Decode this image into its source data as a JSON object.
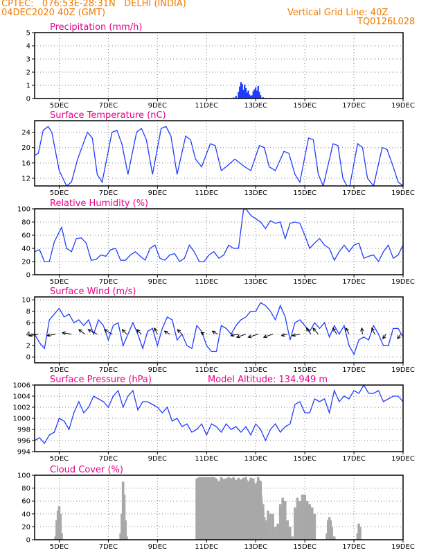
{
  "header": {
    "line1": "CPTEC:   076:53E-28:31N   DELHI (INDIA)",
    "line2": "04DEC2020 40Z (GMT)",
    "right1": "Vertical Grid Line: 40Z",
    "right2": "TQ0126L028"
  },
  "colors": {
    "header": "#f07b00",
    "title": "#e8008a",
    "series": "#1f3bff",
    "cloud": "#a8a8a8",
    "grid": "#808080"
  },
  "chart_data": [
    {
      "id": "precipitation",
      "type": "bar",
      "title": "Precipitation (mm/h)",
      "ylim": [
        0,
        5
      ],
      "yticks": [
        0,
        1,
        2,
        3,
        4,
        5
      ],
      "xticks": [
        "5DEC",
        "7DEC",
        "9DEC",
        "11DEC",
        "13DEC",
        "15DEC",
        "17DEC",
        "19DEC"
      ],
      "x_day_start": 4.0,
      "x_day_end": 19.0,
      "x_tick_days": [
        5,
        7,
        9,
        11,
        13,
        15,
        17,
        19
      ],
      "x": [
        11.6,
        11.8,
        12.0,
        12.1,
        12.2,
        12.3,
        12.35,
        12.4,
        12.45,
        12.5,
        12.55,
        12.6,
        12.65,
        12.7,
        12.75,
        12.8,
        12.85,
        12.9,
        12.95,
        13.0,
        13.05,
        13.1,
        13.15,
        13.2,
        13.3,
        13.4,
        13.6,
        13.8,
        14.0
      ],
      "values": [
        0.02,
        0.05,
        0.05,
        0.08,
        0.2,
        0.5,
        0.9,
        1.25,
        1.1,
        0.65,
        1.05,
        0.8,
        0.45,
        0.6,
        0.3,
        0.2,
        0.25,
        0.55,
        0.7,
        0.85,
        0.6,
        0.95,
        0.5,
        0.25,
        0.1,
        0.05,
        0.05,
        0.03,
        0.02
      ]
    },
    {
      "id": "temperature",
      "type": "line",
      "title": "Surface Temperature (nC)",
      "ylim": [
        10,
        27
      ],
      "yticks": [
        12,
        16,
        20,
        24
      ],
      "xticks": [
        "5DEC",
        "7DEC",
        "9DEC",
        "11DEC",
        "13DEC",
        "15DEC",
        "17DEC",
        "19DEC"
      ],
      "x_day_start": 4.0,
      "x_day_end": 19.0,
      "x_tick_days": [
        5,
        7,
        9,
        11,
        13,
        15,
        17,
        19
      ],
      "x": [
        4.0,
        4.15,
        4.35,
        4.55,
        4.7,
        5.0,
        5.3,
        5.5,
        5.75,
        6.15,
        6.35,
        6.55,
        6.75,
        7.15,
        7.35,
        7.55,
        7.8,
        8.15,
        8.35,
        8.55,
        8.8,
        9.15,
        9.35,
        9.55,
        9.8,
        10.15,
        10.35,
        10.55,
        10.8,
        11.15,
        11.35,
        11.6,
        11.8,
        12.15,
        12.35,
        12.55,
        12.8,
        13.15,
        13.35,
        13.55,
        13.8,
        14.15,
        14.35,
        14.6,
        14.8,
        15.15,
        15.35,
        15.55,
        15.75,
        16.15,
        16.35,
        16.55,
        16.8,
        17.15,
        17.35,
        17.55,
        17.8,
        18.15,
        18.35,
        18.6,
        18.8,
        19.0
      ],
      "values": [
        18,
        18.5,
        24.5,
        25.5,
        24,
        14,
        10,
        11,
        17,
        24,
        22.5,
        13,
        11,
        24,
        24.5,
        21,
        13,
        24,
        25,
        22,
        13,
        25,
        25.5,
        23,
        13,
        23,
        22,
        17,
        15,
        21,
        20.5,
        14,
        15,
        17,
        16,
        15,
        14,
        20.5,
        20,
        15,
        14,
        19,
        18.5,
        13,
        11,
        22.5,
        22,
        13,
        10,
        21,
        20.5,
        12,
        9,
        21,
        20,
        12,
        10,
        20,
        19.5,
        15,
        11,
        10
      ]
    },
    {
      "id": "humidity",
      "type": "line",
      "title": "Relative Humidity (%)",
      "ylim": [
        0,
        100
      ],
      "yticks": [
        0,
        20,
        40,
        60,
        80,
        100
      ],
      "xticks": [
        "5DEC",
        "7DEC",
        "9DEC",
        "11DEC",
        "13DEC",
        "15DEC",
        "17DEC",
        "19DEC"
      ],
      "x_day_start": 4.0,
      "x_day_end": 19.0,
      "x_tick_days": [
        5,
        7,
        9,
        11,
        13,
        15,
        17,
        19
      ],
      "x": [
        4.0,
        4.2,
        4.4,
        4.6,
        4.8,
        5.1,
        5.3,
        5.5,
        5.7,
        5.9,
        6.1,
        6.3,
        6.5,
        6.7,
        6.9,
        7.1,
        7.3,
        7.5,
        7.7,
        7.9,
        8.1,
        8.3,
        8.5,
        8.7,
        8.9,
        9.1,
        9.3,
        9.5,
        9.7,
        9.9,
        10.1,
        10.3,
        10.5,
        10.7,
        10.9,
        11.1,
        11.3,
        11.5,
        11.7,
        11.9,
        12.1,
        12.3,
        12.5,
        12.6,
        12.8,
        13.0,
        13.2,
        13.4,
        13.6,
        13.8,
        14.0,
        14.2,
        14.4,
        14.6,
        14.8,
        15.0,
        15.2,
        15.4,
        15.6,
        15.8,
        16.0,
        16.2,
        16.4,
        16.6,
        16.8,
        17.0,
        17.2,
        17.4,
        17.6,
        17.8,
        18.0,
        18.2,
        18.4,
        18.6,
        18.8,
        19.0
      ],
      "values": [
        35,
        38,
        20,
        20,
        50,
        72,
        40,
        35,
        55,
        56,
        48,
        22,
        23,
        30,
        28,
        38,
        40,
        22,
        22,
        30,
        35,
        28,
        22,
        40,
        45,
        25,
        22,
        30,
        32,
        20,
        25,
        45,
        35,
        20,
        20,
        30,
        35,
        25,
        30,
        45,
        40,
        40,
        98,
        100,
        90,
        85,
        80,
        70,
        82,
        78,
        80,
        55,
        78,
        80,
        78,
        60,
        40,
        48,
        55,
        45,
        40,
        22,
        35,
        45,
        35,
        45,
        48,
        25,
        28,
        30,
        20,
        35,
        45,
        25,
        30,
        45
      ]
    },
    {
      "id": "wind",
      "type": "line",
      "title": "Surface Wind (m/s)",
      "ylim": [
        -1,
        10.5
      ],
      "yticks": [
        0,
        2,
        4,
        6,
        8,
        10
      ],
      "xticks": [
        "5DEC",
        "7DEC",
        "9DEC",
        "11DEC",
        "13DEC",
        "15DEC",
        "17DEC",
        "19DEC"
      ],
      "x_day_start": 4.0,
      "x_day_end": 19.0,
      "x_tick_days": [
        5,
        7,
        9,
        11,
        13,
        15,
        17,
        19
      ],
      "x": [
        4.0,
        4.2,
        4.4,
        4.6,
        4.8,
        5.0,
        5.2,
        5.4,
        5.6,
        5.8,
        6.0,
        6.2,
        6.4,
        6.6,
        6.8,
        7.0,
        7.2,
        7.4,
        7.6,
        7.8,
        8.0,
        8.2,
        8.4,
        8.6,
        8.8,
        9.0,
        9.2,
        9.4,
        9.6,
        9.8,
        10.0,
        10.2,
        10.4,
        10.6,
        10.8,
        11.0,
        11.2,
        11.4,
        11.6,
        11.8,
        12.0,
        12.2,
        12.4,
        12.6,
        12.8,
        13.0,
        13.2,
        13.4,
        13.6,
        13.8,
        14.0,
        14.2,
        14.4,
        14.6,
        14.8,
        15.0,
        15.2,
        15.4,
        15.6,
        15.8,
        16.0,
        16.2,
        16.4,
        16.6,
        16.8,
        17.0,
        17.2,
        17.4,
        17.6,
        17.8,
        18.0,
        18.2,
        18.4,
        18.6,
        18.8,
        19.0
      ],
      "values": [
        4,
        2.5,
        1.5,
        6.5,
        7.5,
        8.5,
        7,
        7.5,
        6,
        6.5,
        5.5,
        6.5,
        4,
        6.5,
        5.5,
        3,
        5.5,
        6,
        2,
        4,
        6,
        4,
        1.5,
        4.5,
        5,
        2,
        5,
        7,
        6.5,
        3,
        4,
        2,
        1.5,
        5.5,
        4.5,
        2,
        1,
        1,
        5.5,
        5,
        4,
        5.5,
        6.5,
        7,
        8,
        8,
        9.5,
        9,
        8,
        6.5,
        9,
        7,
        3,
        6,
        6.5,
        5.5,
        4.5,
        6,
        5,
        6,
        3.5,
        5.5,
        4,
        5.5,
        2,
        0.5,
        3,
        3.5,
        3,
        5.5,
        4,
        2,
        2,
        5,
        5,
        3.5
      ],
      "arrows": {
        "days": [
          4.15,
          4.85,
          5.5,
          6.05,
          6.55,
          7.15,
          7.75,
          8.35,
          9.0,
          9.5,
          10.0,
          10.9,
          11.45,
          12.3,
          12.6,
          13.1,
          13.7,
          14.3,
          14.8,
          15.25,
          15.55,
          16.3,
          16.8,
          17.35,
          17.85,
          18.3,
          18.9
        ],
        "u": [
          -6,
          -5.5,
          -6,
          -4,
          -6,
          -5,
          -3,
          -3,
          -2,
          -3.5,
          -3,
          -2,
          -3.5,
          -5,
          -6,
          -6.5,
          -6,
          -4,
          -5,
          -3,
          -3.5,
          -2.5,
          -2,
          -0.5,
          -2,
          -2,
          -2
        ],
        "v": [
          -1,
          -1,
          1,
          3,
          3,
          3,
          3,
          3,
          4,
          2,
          3,
          1,
          2,
          -1,
          -2,
          -2,
          -2,
          -1,
          -1,
          4,
          4,
          4,
          4,
          4,
          4,
          -3,
          -3
        ]
      }
    },
    {
      "id": "pressure",
      "type": "line",
      "title": "Surface Pressure (hPa)",
      "annotation": "Model Altitude: 134.949 m",
      "ylim": [
        994,
        1006
      ],
      "yticks": [
        994,
        996,
        998,
        1000,
        1002,
        1004,
        1006
      ],
      "xticks": [
        "5DEC",
        "7DEC",
        "9DEC",
        "11DEC",
        "13DEC",
        "15DEC",
        "17DEC",
        "19DEC"
      ],
      "x_day_start": 4.0,
      "x_day_end": 19.0,
      "x_tick_days": [
        5,
        7,
        9,
        11,
        13,
        15,
        17,
        19
      ],
      "x": [
        4.0,
        4.2,
        4.4,
        4.6,
        4.8,
        5.0,
        5.2,
        5.4,
        5.6,
        5.8,
        6.0,
        6.2,
        6.4,
        6.6,
        6.8,
        7.0,
        7.2,
        7.4,
        7.6,
        7.8,
        8.0,
        8.2,
        8.4,
        8.6,
        8.8,
        9.0,
        9.2,
        9.4,
        9.6,
        9.8,
        10.0,
        10.2,
        10.4,
        10.6,
        10.8,
        11.0,
        11.2,
        11.4,
        11.6,
        11.8,
        12.0,
        12.2,
        12.4,
        12.6,
        12.8,
        13.0,
        13.2,
        13.4,
        13.6,
        13.8,
        14.0,
        14.2,
        14.4,
        14.6,
        14.8,
        15.0,
        15.2,
        15.4,
        15.6,
        15.8,
        16.0,
        16.2,
        16.4,
        16.6,
        16.8,
        17.0,
        17.2,
        17.4,
        17.6,
        17.8,
        18.0,
        18.2,
        18.4,
        18.6,
        18.8,
        19.0
      ],
      "values": [
        996,
        996.5,
        995.5,
        997,
        997.5,
        1000,
        999.5,
        998,
        1001,
        1003,
        1001,
        1002,
        1004,
        1003.5,
        1003,
        1002,
        1004,
        1005,
        1002,
        1004,
        1005,
        1001.5,
        1003,
        1003,
        1002.5,
        1002,
        1001,
        1002,
        999.5,
        1000,
        998.5,
        999,
        997.5,
        998,
        999,
        997,
        999,
        998.5,
        997.5,
        999,
        998,
        998.5,
        997.5,
        998.5,
        997,
        999,
        998,
        996,
        998,
        999,
        997.5,
        998.5,
        999,
        1002.5,
        1003,
        1001,
        1001,
        1003.5,
        1003,
        1003.5,
        1001,
        1005,
        1003,
        1004,
        1003.5,
        1005,
        1004.5,
        1006,
        1004.5,
        1004.5,
        1005,
        1003,
        1003.5,
        1004,
        1004,
        1003
      ]
    },
    {
      "id": "cloud",
      "type": "bar",
      "title": "Cloud Cover (%)",
      "ylim": [
        0,
        100
      ],
      "yticks": [
        0,
        20,
        40,
        60,
        80,
        100
      ],
      "xticks": [
        "5DEC",
        "7DEC",
        "9DEC",
        "11DEC",
        "13DEC",
        "15DEC",
        "17DEC",
        "19DEC"
      ],
      "x_day_start": 4.0,
      "x_day_end": 19.0,
      "x_tick_days": [
        5,
        7,
        9,
        11,
        13,
        15,
        17,
        19
      ],
      "x": [
        4.85,
        4.9,
        4.95,
        5.0,
        5.05,
        5.1,
        7.5,
        7.55,
        7.6,
        7.65,
        7.7,
        7.75,
        10.6,
        10.7,
        10.8,
        10.9,
        11.0,
        11.1,
        11.2,
        11.3,
        11.4,
        11.5,
        11.6,
        11.7,
        11.8,
        11.9,
        12.0,
        12.1,
        12.2,
        12.3,
        12.4,
        12.5,
        12.6,
        12.7,
        12.8,
        12.9,
        13.0,
        13.1,
        13.2,
        13.3,
        13.35,
        13.4,
        13.5,
        13.6,
        13.7,
        13.8,
        13.9,
        14.0,
        14.1,
        14.2,
        14.3,
        14.4,
        14.5,
        14.6,
        14.7,
        14.8,
        14.9,
        15.0,
        15.1,
        15.2,
        15.3,
        15.4,
        15.9,
        15.95,
        16.0,
        16.05,
        16.1,
        16.15,
        16.2,
        17.15,
        17.2,
        17.25
      ],
      "values": [
        5,
        30,
        45,
        52,
        40,
        10,
        10,
        40,
        90,
        70,
        30,
        5,
        95,
        97,
        97,
        97,
        97,
        97,
        97,
        97,
        95,
        90,
        97,
        94,
        95,
        97,
        95,
        97,
        92,
        96,
        93,
        96,
        97,
        90,
        96,
        95,
        85,
        97,
        91,
        55,
        35,
        30,
        45,
        40,
        40,
        20,
        25,
        55,
        65,
        60,
        30,
        20,
        5,
        50,
        65,
        60,
        70,
        70,
        60,
        55,
        50,
        40,
        10,
        30,
        35,
        30,
        20,
        5,
        5,
        10,
        25,
        20
      ]
    }
  ]
}
